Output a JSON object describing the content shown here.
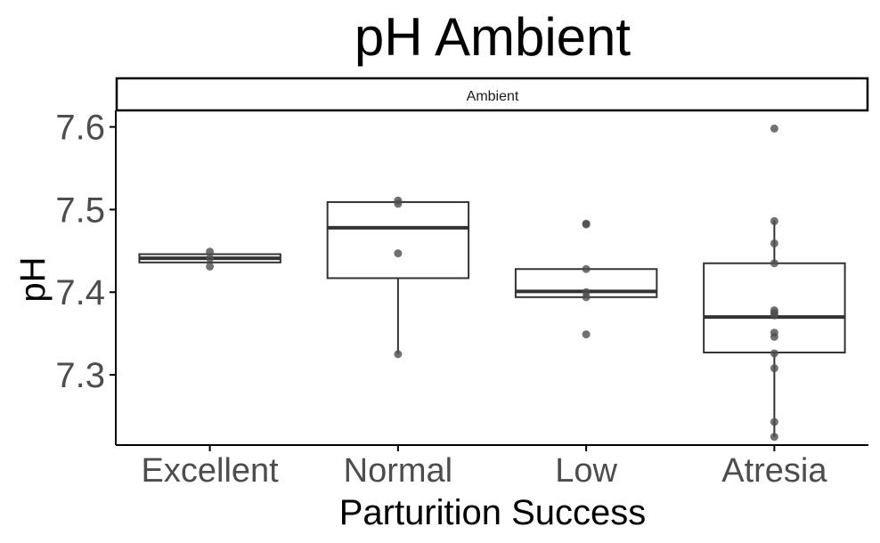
{
  "chart_data": {
    "type": "box",
    "title": "pH Ambient",
    "facet_label": "Ambient",
    "xlabel": "Parturition Success",
    "ylabel": "pH",
    "categories": [
      "Excellent",
      "Normal",
      "Low",
      "Atresia"
    ],
    "ylim": [
      7.215,
      7.62
    ],
    "yticks": [
      7.3,
      7.4,
      7.5,
      7.6
    ],
    "ytick_labels": [
      "7.3",
      "7.4",
      "7.5",
      "7.6"
    ],
    "grid": false,
    "boxes": [
      {
        "category": "Excellent",
        "q1": 7.436,
        "median": 7.441,
        "q3": 7.446,
        "whisker_low": 7.436,
        "whisker_high": 7.446,
        "points": [
          7.449,
          7.431,
          7.441
        ]
      },
      {
        "category": "Normal",
        "q1": 7.417,
        "median": 7.478,
        "q3": 7.509,
        "whisker_low": 7.325,
        "whisker_high": 7.509,
        "points": [
          7.511,
          7.507,
          7.447,
          7.325
        ]
      },
      {
        "category": "Low",
        "q1": 7.394,
        "median": 7.401,
        "q3": 7.428,
        "whisker_low": 7.394,
        "whisker_high": 7.428,
        "points": [
          7.483,
          7.482,
          7.428,
          7.4,
          7.394,
          7.349
        ]
      },
      {
        "category": "Atresia",
        "q1": 7.327,
        "median": 7.37,
        "q3": 7.435,
        "whisker_low": 7.225,
        "whisker_high": 7.487,
        "points": [
          7.598,
          7.486,
          7.459,
          7.435,
          7.378,
          7.375,
          7.372,
          7.351,
          7.346,
          7.326,
          7.308,
          7.243,
          7.225
        ]
      }
    ],
    "colors": {
      "box": "#333333",
      "median": "#333333",
      "point": "#4d4d4d",
      "axis": "#000000",
      "tick_label": "#4d4d4d"
    }
  }
}
